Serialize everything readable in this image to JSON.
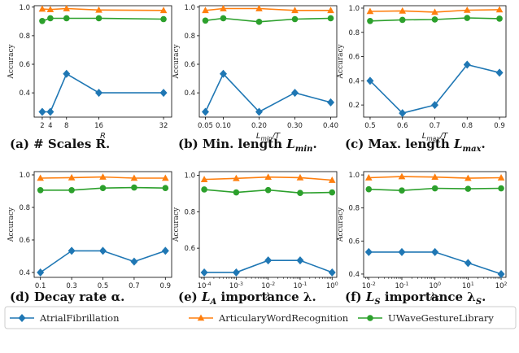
{
  "colors": {
    "atrial": "#1f77b4",
    "articulary": "#ff7f0e",
    "uwave": "#2ca02c"
  },
  "legend": {
    "placement": "bottom",
    "items": [
      {
        "label": "AtrialFibrillation",
        "marker": "diamond",
        "color": "#1f77b4"
      },
      {
        "label": "ArticularyWordRecognition",
        "marker": "triangle",
        "color": "#ff7f0e"
      },
      {
        "label": "UWaveGestureLibrary",
        "marker": "circle",
        "color": "#2ca02c"
      }
    ]
  },
  "chart_data": [
    {
      "type": "line",
      "caption": "(a) # Scales R.",
      "xlabel": "R",
      "ylabel": "Accuracy",
      "x": [
        2,
        4,
        8,
        16,
        32
      ],
      "xtick_labels": [
        "2",
        "4",
        "8",
        "16",
        "32"
      ],
      "xlim": [
        0,
        34
      ],
      "ylim": [
        0.23,
        1.01
      ],
      "yticks": [
        0.4,
        0.6,
        0.8,
        1.0
      ],
      "ytick_labels": [
        "0.4",
        "0.6",
        "0.8",
        "1.0"
      ],
      "series": [
        {
          "name": "AtrialFibrillation",
          "values": [
            0.267,
            0.267,
            0.533,
            0.4,
            0.4
          ]
        },
        {
          "name": "ArticularyWordRecognition",
          "values": [
            0.987,
            0.983,
            0.99,
            0.98,
            0.977
          ]
        },
        {
          "name": "UWaveGestureLibrary",
          "values": [
            0.903,
            0.922,
            0.922,
            0.922,
            0.916
          ]
        }
      ]
    },
    {
      "type": "line",
      "caption": "(b) Min. length L_min.",
      "xlabel": "L_min/T",
      "ylabel": "Accuracy",
      "x": [
        0.05,
        0.1,
        0.2,
        0.3,
        0.4
      ],
      "xtick_labels": [
        "0.05",
        "0.10",
        "0.20",
        "0.30",
        "0.40"
      ],
      "xlim": [
        0.033,
        0.417
      ],
      "ylim": [
        0.23,
        1.01
      ],
      "yticks": [
        0.4,
        0.6,
        0.8,
        1.0
      ],
      "ytick_labels": [
        "0.4",
        "0.6",
        "0.8",
        "1.0"
      ],
      "series": [
        {
          "name": "AtrialFibrillation",
          "values": [
            0.267,
            0.533,
            0.267,
            0.4,
            0.333
          ]
        },
        {
          "name": "ArticularyWordRecognition",
          "values": [
            0.977,
            0.99,
            0.99,
            0.977,
            0.977
          ]
        },
        {
          "name": "UWaveGestureLibrary",
          "values": [
            0.906,
            0.922,
            0.897,
            0.916,
            0.922
          ]
        }
      ]
    },
    {
      "type": "line",
      "caption": "(c) Max. length L_max.",
      "xlabel": "L_max/T",
      "ylabel": "Accuracy",
      "x": [
        0.5,
        0.6,
        0.7,
        0.8,
        0.9
      ],
      "xtick_labels": [
        "0.5",
        "0.6",
        "0.7",
        "0.8",
        "0.9"
      ],
      "xlim": [
        0.48,
        0.92
      ],
      "ylim": [
        0.1,
        1.02
      ],
      "yticks": [
        0.2,
        0.4,
        0.6,
        0.8,
        1.0
      ],
      "ytick_labels": [
        "0.2",
        "0.4",
        "0.6",
        "0.8",
        "1.0"
      ],
      "series": [
        {
          "name": "AtrialFibrillation",
          "values": [
            0.4,
            0.133,
            0.2,
            0.533,
            0.467
          ]
        },
        {
          "name": "ArticularyWordRecognition",
          "values": [
            0.973,
            0.977,
            0.967,
            0.983,
            0.987
          ]
        },
        {
          "name": "UWaveGestureLibrary",
          "values": [
            0.894,
            0.903,
            0.906,
            0.919,
            0.913
          ]
        }
      ]
    },
    {
      "type": "line",
      "caption": "(d) Decay rate α.",
      "xlabel": "α",
      "ylabel": "Accuracy",
      "x": [
        0.1,
        0.3,
        0.5,
        0.7,
        0.9
      ],
      "xtick_labels": [
        "0.1",
        "0.3",
        "0.5",
        "0.7",
        "0.9"
      ],
      "xlim": [
        0.06,
        0.94
      ],
      "ylim": [
        0.37,
        1.02
      ],
      "yticks": [
        0.4,
        0.6,
        0.8,
        1.0
      ],
      "ytick_labels": [
        "0.4",
        "0.6",
        "0.8",
        "1.0"
      ],
      "series": [
        {
          "name": "AtrialFibrillation",
          "values": [
            0.4,
            0.533,
            0.533,
            0.467,
            0.533
          ]
        },
        {
          "name": "ArticularyWordRecognition",
          "values": [
            0.98,
            0.983,
            0.987,
            0.98,
            0.98
          ]
        },
        {
          "name": "UWaveGestureLibrary",
          "values": [
            0.906,
            0.906,
            0.919,
            0.922,
            0.919
          ]
        }
      ]
    },
    {
      "type": "line",
      "caption": "(e) L_A importance λ.",
      "xlabel": "λ",
      "ylabel": "Accuracy",
      "x": [
        0.0001,
        0.001,
        0.01,
        0.1,
        1
      ],
      "xscale": "log",
      "xtick_labels": [
        "10^-4",
        "10^-3",
        "10^-2",
        "10^-1",
        "10^0"
      ],
      "xlim": [
        7e-05,
        1.4
      ],
      "ylim": [
        0.44,
        1.02
      ],
      "yticks": [
        0.6,
        0.8,
        1.0
      ],
      "ytick_labels": [
        "0.6",
        "0.8",
        "1.0"
      ],
      "series": [
        {
          "name": "AtrialFibrillation",
          "values": [
            0.467,
            0.467,
            0.533,
            0.533,
            0.467
          ]
        },
        {
          "name": "ArticularyWordRecognition",
          "values": [
            0.977,
            0.983,
            0.99,
            0.987,
            0.973
          ]
        },
        {
          "name": "UWaveGestureLibrary",
          "values": [
            0.922,
            0.906,
            0.919,
            0.903,
            0.906
          ]
        }
      ]
    },
    {
      "type": "line",
      "caption": "(f) L_S importance λ_S.",
      "xlabel": "λ_S",
      "ylabel": "Accuracy",
      "x": [
        0.01,
        0.1,
        1,
        10,
        100
      ],
      "xscale": "log",
      "xtick_labels": [
        "10^-2",
        "10^-1",
        "10^0",
        "10^1",
        "10^2"
      ],
      "xlim": [
        0.007,
        140
      ],
      "ylim": [
        0.38,
        1.02
      ],
      "yticks": [
        0.4,
        0.6,
        0.8,
        1.0
      ],
      "ytick_labels": [
        "0.4",
        "0.6",
        "0.8",
        "1.0"
      ],
      "series": [
        {
          "name": "AtrialFibrillation",
          "values": [
            0.533,
            0.533,
            0.533,
            0.467,
            0.4
          ]
        },
        {
          "name": "ArticularyWordRecognition",
          "values": [
            0.983,
            0.99,
            0.987,
            0.98,
            0.983
          ]
        },
        {
          "name": "UWaveGestureLibrary",
          "values": [
            0.913,
            0.906,
            0.919,
            0.916,
            0.919
          ]
        }
      ]
    }
  ]
}
